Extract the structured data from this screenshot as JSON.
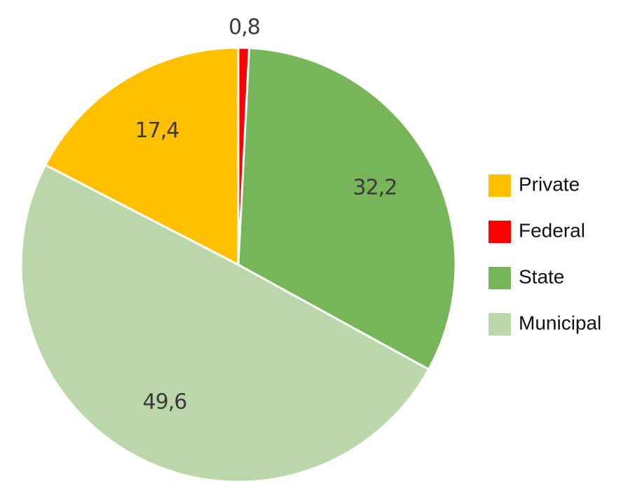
{
  "chart_data": {
    "type": "pie",
    "categories": [
      "Private",
      "Federal",
      "State",
      "Municipal"
    ],
    "values": [
      17.4,
      0.8,
      32.2,
      49.6
    ],
    "value_labels": [
      "17,4",
      "0,8",
      "32,2",
      "49,6"
    ],
    "colors": [
      "#ffc000",
      "#ff0000",
      "#77b55a",
      "#b9d7a8"
    ],
    "legend": "right"
  }
}
